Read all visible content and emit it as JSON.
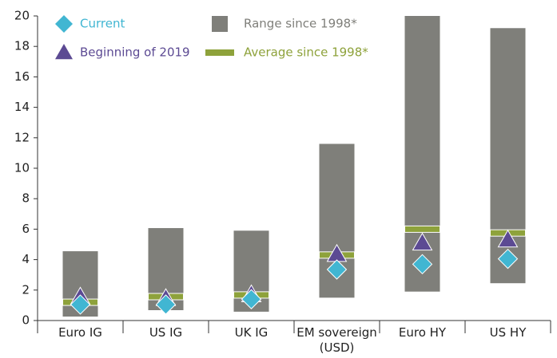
{
  "chart_data": {
    "type": "range",
    "categories": [
      "Euro IG",
      "US IG",
      "UK IG",
      "EM sovereign (USD)",
      "Euro HY",
      "US HY"
    ],
    "range": {
      "name": "Range since 1998*",
      "color": "#7f7f7a",
      "low": [
        0.26,
        0.68,
        0.58,
        1.5,
        1.9,
        2.45
      ],
      "high": [
        4.55,
        6.07,
        5.9,
        11.6,
        20,
        19.2
      ]
    },
    "series": [
      {
        "name": "Average since 1998*",
        "color": "#8ea23b",
        "marker": "dash",
        "values": [
          1.2,
          1.57,
          1.68,
          4.3,
          6.0,
          5.75
        ]
      },
      {
        "name": "Beginning of 2019",
        "color": "#5c4a93",
        "marker": "triangle",
        "values": [
          1.55,
          1.45,
          1.7,
          4.35,
          5.1,
          5.3
        ]
      },
      {
        "name": "Current",
        "color": "#41b6d2",
        "marker": "diamond",
        "values": [
          1.05,
          1.05,
          1.4,
          3.35,
          3.7,
          4.05
        ]
      }
    ],
    "ylim": [
      0,
      20
    ],
    "yticks": [
      0,
      2,
      4,
      6,
      8,
      10,
      12,
      14,
      16,
      18,
      20
    ]
  }
}
